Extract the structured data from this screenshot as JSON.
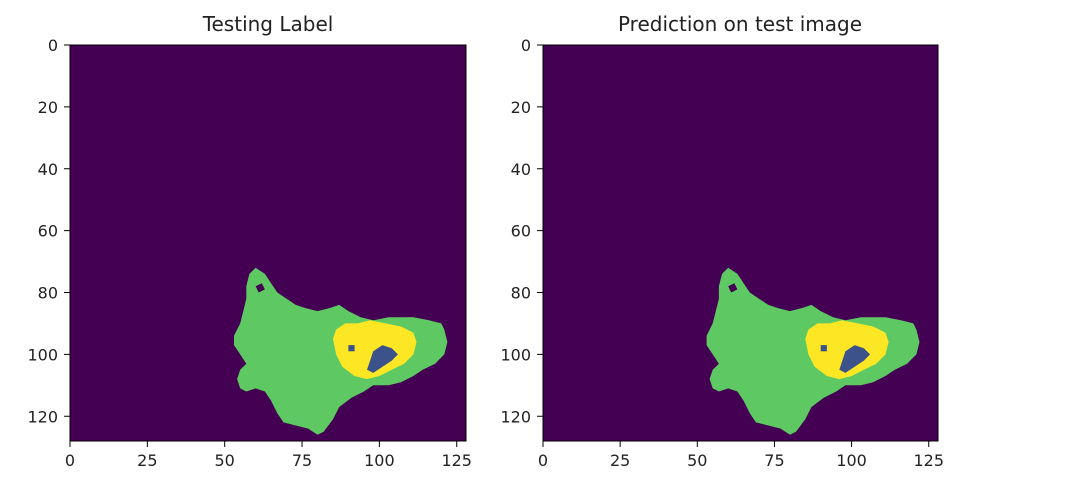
{
  "chart_data": [
    {
      "type": "heatmap",
      "title": "Testing Label",
      "image_size": [
        128,
        128
      ],
      "xlim": [
        0,
        128
      ],
      "ylim": [
        128,
        0
      ],
      "xticks": [
        0,
        25,
        50,
        75,
        100,
        125
      ],
      "yticks": [
        0,
        20,
        40,
        60,
        80,
        100,
        120
      ],
      "colormap": "viridis",
      "class_colors": [
        "#440154",
        "#3b528b",
        "#5ec962",
        "#fde725"
      ],
      "classes": [
        0,
        1,
        2,
        3
      ],
      "regions": [
        {
          "class": 2,
          "polygon": [
            [
              58,
              74
            ],
            [
              60,
              72
            ],
            [
              63,
              74
            ],
            [
              65,
              77
            ],
            [
              67,
              80
            ],
            [
              70,
              82
            ],
            [
              73,
              84
            ],
            [
              76,
              85
            ],
            [
              80,
              86
            ],
            [
              84,
              85
            ],
            [
              87,
              84
            ],
            [
              90,
              86
            ],
            [
              94,
              88
            ],
            [
              98,
              89
            ],
            [
              103,
              88
            ],
            [
              107,
              88
            ],
            [
              111,
              88
            ],
            [
              116,
              89
            ],
            [
              120,
              90
            ],
            [
              121,
              92
            ],
            [
              122,
              96
            ],
            [
              121,
              100
            ],
            [
              118,
              103
            ],
            [
              114,
              105
            ],
            [
              111,
              107
            ],
            [
              107,
              109
            ],
            [
              103,
              110
            ],
            [
              98,
              110
            ],
            [
              95,
              112
            ],
            [
              91,
              114
            ],
            [
              87,
              117
            ],
            [
              85,
              121
            ],
            [
              82,
              125
            ],
            [
              80,
              126
            ],
            [
              77,
              124
            ],
            [
              73,
              123
            ],
            [
              69,
              122
            ],
            [
              67,
              119
            ],
            [
              65,
              115
            ],
            [
              63,
              112
            ],
            [
              60,
              111
            ],
            [
              57,
              112
            ],
            [
              55,
              111
            ],
            [
              54,
              108
            ],
            [
              55,
              105
            ],
            [
              57,
              103
            ],
            [
              55,
              100
            ],
            [
              53,
              97
            ],
            [
              53,
              94
            ],
            [
              55,
              90
            ],
            [
              56,
              86
            ],
            [
              57,
              82
            ],
            [
              57,
              78
            ]
          ]
        },
        {
          "class": 3,
          "polygon": [
            [
              85,
              95
            ],
            [
              86,
              92
            ],
            [
              89,
              90
            ],
            [
              93,
              90
            ],
            [
              97,
              89
            ],
            [
              102,
              90
            ],
            [
              107,
              91
            ],
            [
              111,
              93
            ],
            [
              112,
              96
            ],
            [
              111,
              100
            ],
            [
              108,
              103
            ],
            [
              104,
              105
            ],
            [
              100,
              107
            ],
            [
              96,
              108
            ],
            [
              92,
              107
            ],
            [
              88,
              104
            ],
            [
              86,
              100
            ]
          ]
        },
        {
          "class": 1,
          "polygon": [
            [
              98,
              99
            ],
            [
              101,
              97
            ],
            [
              104,
              98
            ],
            [
              106,
              100
            ],
            [
              104,
              102
            ],
            [
              101,
              104
            ],
            [
              98,
              106
            ],
            [
              96,
              105
            ],
            [
              97,
              102
            ]
          ]
        },
        {
          "class": 1,
          "polygon": [
            [
              90,
              97
            ],
            [
              92,
              97
            ],
            [
              92,
              99
            ],
            [
              90,
              99
            ]
          ]
        },
        {
          "class": 0,
          "polygon": [
            [
              60,
              78
            ],
            [
              62,
              77
            ],
            [
              63,
              79
            ],
            [
              61,
              80
            ]
          ]
        }
      ]
    },
    {
      "type": "heatmap",
      "title": "Prediction on test image",
      "image_size": [
        128,
        128
      ],
      "xlim": [
        0,
        128
      ],
      "ylim": [
        128,
        0
      ],
      "xticks": [
        0,
        25,
        50,
        75,
        100,
        125
      ],
      "yticks": [
        0,
        20,
        40,
        60,
        80,
        100,
        120
      ],
      "colormap": "viridis",
      "class_colors": [
        "#440154",
        "#3b528b",
        "#5ec962",
        "#fde725"
      ],
      "classes": [
        0,
        1,
        2,
        3
      ],
      "regions": [
        {
          "class": 2,
          "polygon": [
            [
              58,
              74
            ],
            [
              60,
              72
            ],
            [
              63,
              74
            ],
            [
              65,
              77
            ],
            [
              67,
              80
            ],
            [
              70,
              82
            ],
            [
              73,
              84
            ],
            [
              76,
              85
            ],
            [
              80,
              86
            ],
            [
              84,
              85
            ],
            [
              87,
              84
            ],
            [
              90,
              86
            ],
            [
              94,
              88
            ],
            [
              98,
              89
            ],
            [
              103,
              88
            ],
            [
              107,
              88
            ],
            [
              111,
              88
            ],
            [
              116,
              89
            ],
            [
              120,
              90
            ],
            [
              121,
              92
            ],
            [
              122,
              96
            ],
            [
              121,
              100
            ],
            [
              118,
              103
            ],
            [
              114,
              105
            ],
            [
              111,
              107
            ],
            [
              107,
              109
            ],
            [
              103,
              110
            ],
            [
              98,
              110
            ],
            [
              95,
              112
            ],
            [
              91,
              114
            ],
            [
              87,
              117
            ],
            [
              85,
              121
            ],
            [
              82,
              125
            ],
            [
              80,
              126
            ],
            [
              77,
              124
            ],
            [
              73,
              123
            ],
            [
              69,
              122
            ],
            [
              67,
              119
            ],
            [
              65,
              115
            ],
            [
              63,
              112
            ],
            [
              60,
              111
            ],
            [
              57,
              112
            ],
            [
              55,
              111
            ],
            [
              54,
              108
            ],
            [
              55,
              105
            ],
            [
              57,
              103
            ],
            [
              55,
              100
            ],
            [
              53,
              97
            ],
            [
              53,
              94
            ],
            [
              55,
              90
            ],
            [
              56,
              86
            ],
            [
              57,
              82
            ],
            [
              57,
              78
            ]
          ]
        },
        {
          "class": 3,
          "polygon": [
            [
              85,
              95
            ],
            [
              86,
              92
            ],
            [
              89,
              90
            ],
            [
              93,
              90
            ],
            [
              97,
              89
            ],
            [
              102,
              90
            ],
            [
              107,
              91
            ],
            [
              111,
              93
            ],
            [
              112,
              96
            ],
            [
              111,
              100
            ],
            [
              108,
              103
            ],
            [
              104,
              105
            ],
            [
              100,
              107
            ],
            [
              96,
              108
            ],
            [
              92,
              107
            ],
            [
              88,
              104
            ],
            [
              86,
              100
            ]
          ]
        },
        {
          "class": 1,
          "polygon": [
            [
              98,
              99
            ],
            [
              101,
              97
            ],
            [
              104,
              98
            ],
            [
              106,
              100
            ],
            [
              104,
              102
            ],
            [
              101,
              104
            ],
            [
              98,
              106
            ],
            [
              96,
              105
            ],
            [
              97,
              102
            ]
          ]
        },
        {
          "class": 1,
          "polygon": [
            [
              90,
              97
            ],
            [
              92,
              97
            ],
            [
              92,
              99
            ],
            [
              90,
              99
            ]
          ]
        },
        {
          "class": 0,
          "polygon": [
            [
              60,
              78
            ],
            [
              62,
              77
            ],
            [
              63,
              79
            ],
            [
              61,
              80
            ]
          ]
        }
      ]
    }
  ]
}
